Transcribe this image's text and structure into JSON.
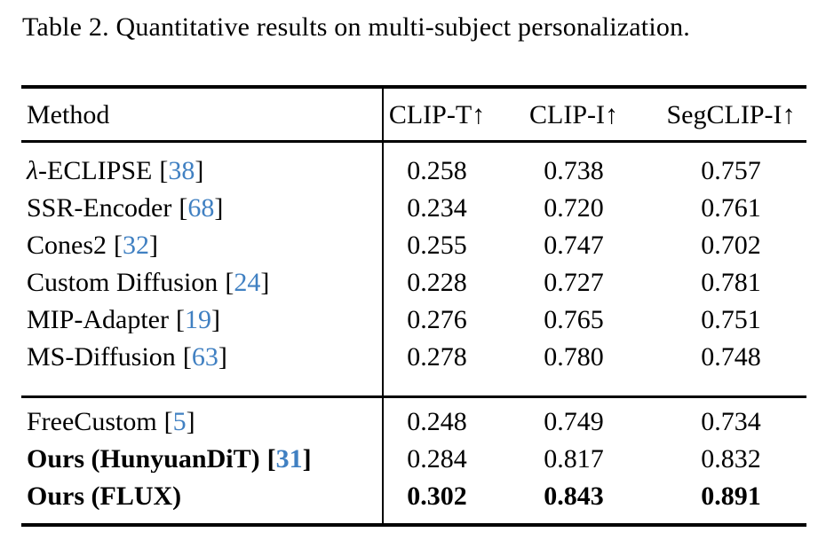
{
  "caption": "Table 2. Quantitative results on multi-subject personalization.",
  "colors": {
    "background": "#ffffff",
    "text": "#000000",
    "citation": "#4080c2"
  },
  "table": {
    "cite_open": "[",
    "cite_close": "]",
    "header": {
      "method": "Method",
      "columns": [
        "CLIP-T↑",
        "CLIP-I↑",
        "SegCLIP-I↑"
      ]
    },
    "groups": [
      {
        "rows": [
          {
            "name_italic": "λ",
            "name": "-ECLIPSE",
            "cite": "38",
            "values": [
              "0.258",
              "0.738",
              "0.757"
            ]
          },
          {
            "name": "SSR-Encoder",
            "cite": "68",
            "values": [
              "0.234",
              "0.720",
              "0.761"
            ]
          },
          {
            "name": "Cones2",
            "cite": "32",
            "values": [
              "0.255",
              "0.747",
              "0.702"
            ]
          },
          {
            "name": "Custom Diffusion",
            "cite": "24",
            "values": [
              "0.228",
              "0.727",
              "0.781"
            ]
          },
          {
            "name": "MIP-Adapter",
            "cite": "19",
            "values": [
              "0.276",
              "0.765",
              "0.751"
            ]
          },
          {
            "name": "MS-Diffusion",
            "cite": "63",
            "values": [
              "0.278",
              "0.780",
              "0.748"
            ]
          }
        ]
      },
      {
        "rows": [
          {
            "name": "FreeCustom",
            "cite": "5",
            "values": [
              "0.248",
              "0.749",
              "0.734"
            ]
          },
          {
            "name": "Ours (HunyuanDiT)",
            "cite": "31",
            "values": [
              "0.284",
              "0.817",
              "0.832"
            ]
          },
          {
            "name": "Ours (FLUX)",
            "values": [
              "0.302",
              "0.843",
              "0.891"
            ]
          }
        ]
      }
    ]
  }
}
